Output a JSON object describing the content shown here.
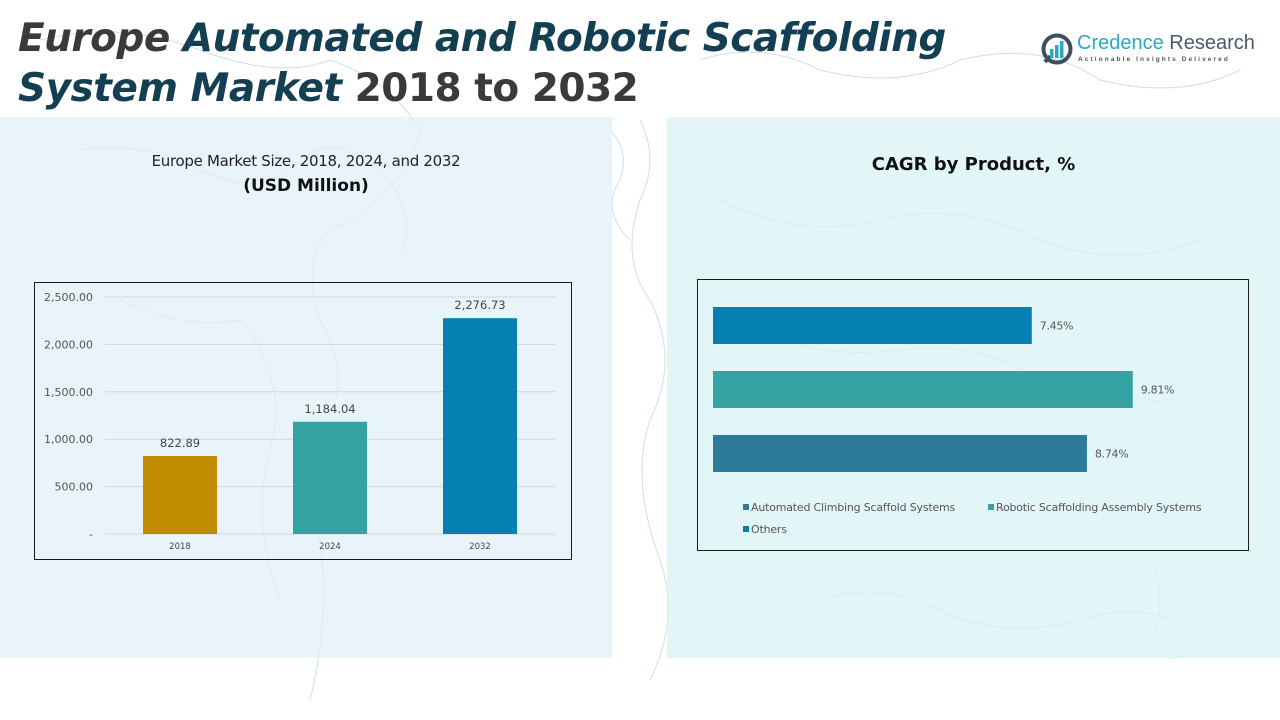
{
  "header": {
    "title_part1": "Europe ",
    "title_part2": "Automated and Robotic Scaffolding",
    "title_part3": "System Market ",
    "title_part4": "2018 to 2032"
  },
  "logo": {
    "name_part1": "Credence ",
    "name_part2": "Research",
    "tagline": "Actionable Insights Delivered",
    "icon": "bar-chart-circle-icon"
  },
  "left_panel": {
    "subtitle": "Europe Market Size, 2018, 2024, and 2032",
    "unit": "(USD Million)"
  },
  "right_panel": {
    "title": "CAGR by Product, %"
  },
  "chart_data": [
    {
      "type": "bar",
      "title": "Europe Market Size, 2018, 2024, and 2032 (USD Million)",
      "categories": [
        "2018",
        "2024",
        "2032"
      ],
      "values": [
        822.89,
        1184.04,
        2276.73
      ],
      "value_labels": [
        "822.89",
        "1,184.04",
        "2,276.73"
      ],
      "colors": [
        "#bf8c00",
        "#35a3a3",
        "#0680b0"
      ],
      "ylim": [
        0,
        2500
      ],
      "yticks": [
        0,
        500,
        1000,
        1500,
        2000,
        2500
      ],
      "ytick_labels": [
        "-",
        "500.00",
        "1,000.00",
        "1,500.00",
        "2,000.00",
        "2,500.00"
      ],
      "xlabel": "",
      "ylabel": "",
      "grid": true
    },
    {
      "type": "bar",
      "orientation": "horizontal",
      "title": "CAGR by Product, %",
      "series": [
        {
          "name": "Automated Climbing Scaffold Systems",
          "value": 8.74,
          "label": "8.74%",
          "color": "#2e7a9a"
        },
        {
          "name": "Robotic Scaffolding Assembly Systems",
          "value": 9.81,
          "label": "9.81%",
          "color": "#35a3a3"
        },
        {
          "name": "Others",
          "value": 7.45,
          "label": "7.45%",
          "color": "#0680b0"
        }
      ],
      "bar_order_top_to_bottom": [
        "Others",
        "Robotic Scaffolding Assembly Systems",
        "Automated Climbing Scaffold Systems"
      ],
      "xlim": [
        0,
        10.4
      ],
      "grid": false,
      "legend_position": "bottom"
    }
  ]
}
